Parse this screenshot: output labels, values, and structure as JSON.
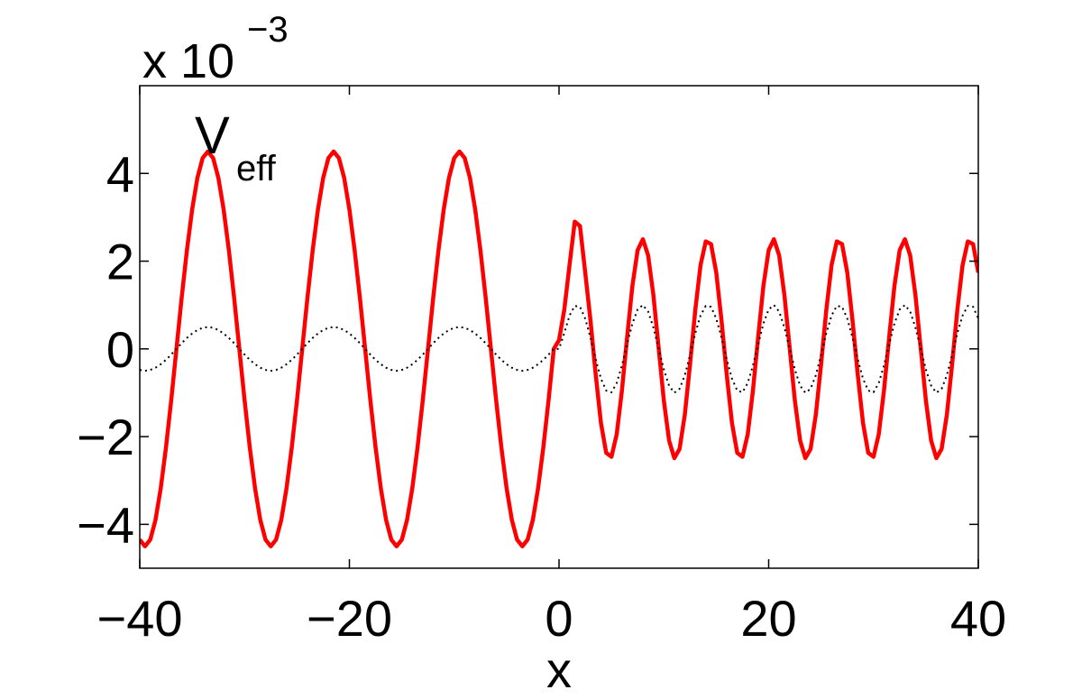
{
  "chart_data": {
    "type": "line",
    "multiplier": "x 10",
    "multiplier_exponent": "−3",
    "annotation": "V",
    "annotation_subscript": "eff",
    "xlabel": "x",
    "xlim": [
      -40,
      40
    ],
    "ylim": [
      -5,
      6
    ],
    "xticks": [
      {
        "value": -40,
        "label": "−40"
      },
      {
        "value": -20,
        "label": "−20"
      },
      0,
      20,
      40
    ],
    "yticks": [
      {
        "value": -4,
        "label": "−4"
      },
      {
        "value": -2,
        "label": "−2"
      },
      0,
      2,
      4
    ],
    "grid": false,
    "x": [
      -40,
      -39.5,
      -39,
      -38.5,
      -38,
      -37.5,
      -37,
      -36.5,
      -36,
      -35.5,
      -35,
      -34.5,
      -34,
      -33.5,
      -33,
      -32.5,
      -32,
      -31.5,
      -31,
      -30.5,
      -30,
      -29.5,
      -29,
      -28.5,
      -28,
      -27.5,
      -27,
      -26.5,
      -26,
      -25.5,
      -25,
      -24.5,
      -24,
      -23.5,
      -23,
      -22.5,
      -22,
      -21.5,
      -21,
      -20.5,
      -20,
      -19.5,
      -19,
      -18.5,
      -18,
      -17.5,
      -17,
      -16.5,
      -16,
      -15.5,
      -15,
      -14.5,
      -14,
      -13.5,
      -13,
      -12.5,
      -12,
      -11.5,
      -11,
      -10.5,
      -10,
      -9.5,
      -9,
      -8.5,
      -8,
      -7.5,
      -7,
      -6.5,
      -6,
      -5.5,
      -5,
      -4.5,
      -4,
      -3.5,
      -3,
      -2.5,
      -2,
      -1.5,
      -1,
      -0.5,
      0,
      0.5,
      1,
      1.5,
      2,
      2.5,
      3,
      3.5,
      4,
      4.5,
      5,
      5.5,
      6,
      6.5,
      7,
      7.5,
      8,
      8.5,
      9,
      9.5,
      10,
      10.5,
      11,
      11.5,
      12,
      12.5,
      13,
      13.5,
      14,
      14.5,
      15,
      15.5,
      16,
      16.5,
      17,
      17.5,
      18,
      18.5,
      19,
      19.5,
      20,
      20.5,
      21,
      21.5,
      22,
      22.5,
      23,
      23.5,
      24,
      24.5,
      25,
      25.5,
      26,
      26.5,
      27,
      27.5,
      28,
      28.5,
      29,
      29.5,
      30,
      30.5,
      31,
      31.5,
      32,
      32.5,
      33,
      33.5,
      34,
      34.5,
      35,
      35.5,
      36,
      36.5,
      37,
      37.5,
      38,
      38.5,
      39,
      39.5,
      40
    ],
    "series": [
      {
        "color": "#ff0000",
        "style": "solid",
        "values": [
          -4.35,
          -4.5,
          -4.35,
          -3.9,
          -3.18,
          -2.25,
          -1.17,
          0,
          1.17,
          2.25,
          3.18,
          3.9,
          4.35,
          4.5,
          4.35,
          3.9,
          3.18,
          2.25,
          1.17,
          0,
          -1.17,
          -2.25,
          -3.18,
          -3.9,
          -4.35,
          -4.5,
          -4.35,
          -3.9,
          -3.18,
          -2.25,
          -1.17,
          0,
          1.17,
          2.25,
          3.18,
          3.9,
          4.35,
          4.5,
          4.35,
          3.9,
          3.18,
          2.25,
          1.17,
          0,
          -1.17,
          -2.25,
          -3.18,
          -3.9,
          -4.35,
          -4.5,
          -4.35,
          -3.9,
          -3.18,
          -2.25,
          -1.17,
          0,
          1.17,
          2.25,
          3.18,
          3.9,
          4.35,
          4.5,
          4.35,
          3.9,
          3.18,
          2.25,
          1.17,
          0,
          -1.17,
          -2.25,
          -3.18,
          -3.9,
          -4.35,
          -4.5,
          -4.35,
          -3.9,
          -3.18,
          -2.25,
          -1.17,
          0,
          0.2,
          0.89,
          1.91,
          2.9,
          2.8,
          1.74,
          0.65,
          -0.59,
          -1.69,
          -2.37,
          -2.46,
          -1.95,
          -0.95,
          0.28,
          1.44,
          2.25,
          2.5,
          2.13,
          1.23,
          0.03,
          -1.18,
          -2.09,
          -2.49,
          -2.28,
          -1.5,
          -0.35,
          0.89,
          1.91,
          2.45,
          2.39,
          1.74,
          0.65,
          -0.59,
          -1.69,
          -2.37,
          -2.46,
          -1.95,
          -0.95,
          0.28,
          1.44,
          2.25,
          2.5,
          2.13,
          1.23,
          0.03,
          -1.18,
          -2.09,
          -2.49,
          -2.28,
          -1.5,
          -0.35,
          0.89,
          1.91,
          2.45,
          2.39,
          1.74,
          0.65,
          -0.59,
          -1.69,
          -2.37,
          -2.46,
          -1.95,
          -0.95,
          0.28,
          1.44,
          2.25,
          2.5,
          2.13,
          1.23,
          0.03,
          -1.18,
          -2.09,
          -2.49,
          -2.28,
          -1.5,
          -0.35,
          0.89,
          1.91,
          2.45,
          2.39,
          1.74
        ]
      },
      {
        "color": "#000000",
        "style": "dotted",
        "values": [
          -0.48,
          -0.5,
          -0.48,
          -0.43,
          -0.35,
          -0.25,
          -0.13,
          0,
          0.13,
          0.25,
          0.35,
          0.43,
          0.48,
          0.5,
          0.48,
          0.43,
          0.35,
          0.25,
          0.13,
          0,
          -0.13,
          -0.25,
          -0.35,
          -0.43,
          -0.48,
          -0.5,
          -0.48,
          -0.43,
          -0.35,
          -0.25,
          -0.13,
          0,
          0.13,
          0.25,
          0.35,
          0.43,
          0.48,
          0.5,
          0.48,
          0.43,
          0.35,
          0.25,
          0.13,
          0,
          -0.13,
          -0.25,
          -0.35,
          -0.43,
          -0.48,
          -0.5,
          -0.48,
          -0.43,
          -0.35,
          -0.25,
          -0.13,
          0,
          0.13,
          0.25,
          0.35,
          0.43,
          0.48,
          0.5,
          0.48,
          0.43,
          0.35,
          0.25,
          0.13,
          0,
          -0.13,
          -0.25,
          -0.35,
          -0.43,
          -0.48,
          -0.5,
          -0.48,
          -0.43,
          -0.35,
          -0.25,
          -0.13,
          0,
          0,
          0.36,
          0.76,
          0.98,
          0.96,
          0.69,
          0.26,
          -0.24,
          -0.68,
          -0.95,
          -0.99,
          -0.78,
          -0.38,
          0.11,
          0.58,
          0.9,
          1,
          0.85,
          0.49,
          0.01,
          -0.47,
          -0.84,
          -1,
          -0.91,
          -0.6,
          -0.14,
          0.36,
          0.76,
          0.98,
          0.96,
          0.69,
          0.26,
          -0.24,
          -0.68,
          -0.95,
          -0.99,
          -0.78,
          -0.38,
          0.11,
          0.58,
          0.9,
          1,
          0.85,
          0.49,
          0.01,
          -0.47,
          -0.84,
          -1,
          -0.91,
          -0.6,
          -0.14,
          0.36,
          0.76,
          0.98,
          0.96,
          0.69,
          0.26,
          -0.24,
          -0.68,
          -0.95,
          -0.99,
          -0.78,
          -0.38,
          0.11,
          0.58,
          0.9,
          1,
          0.85,
          0.49,
          0.01,
          -0.47,
          -0.84,
          -1,
          -0.91,
          -0.6,
          -0.14,
          0.36,
          0.76,
          0.98,
          0.96,
          0.69
        ]
      }
    ]
  }
}
